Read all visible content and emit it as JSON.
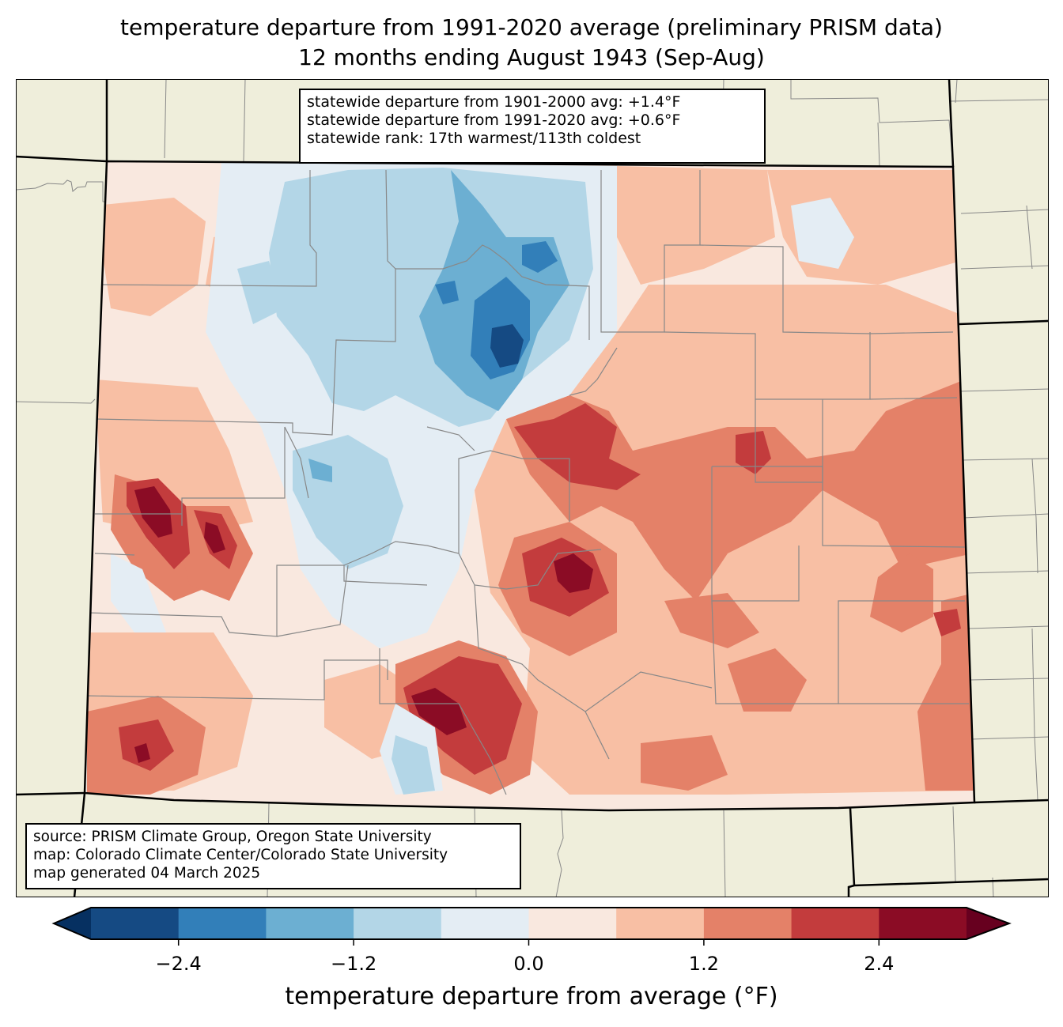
{
  "header": {
    "title_line1": "temperature departure from 1991-2020 average (preliminary PRISM data)",
    "title_line2": "12 months ending August 1943 (Sep-Aug)"
  },
  "stats": {
    "line1": "statewide departure from 1901-2000 avg: +1.4°F",
    "line2": "statewide departure from 1991-2020 avg: +0.6°F",
    "line3": "statewide rank: 17th warmest/113th coldest"
  },
  "credits": {
    "line1": "source: PRISM Climate Group, Oregon State University",
    "line2": "map: Colorado Climate Center/Colorado State University",
    "line3": "map generated 04 March 2025"
  },
  "colorbar": {
    "label": "temperature departure from average (°F)",
    "ticks": [
      {
        "value": -2.4,
        "label": "−2.4"
      },
      {
        "value": -1.2,
        "label": "−1.2"
      },
      {
        "value": 0.0,
        "label": "0.0"
      },
      {
        "value": 1.2,
        "label": "1.2"
      },
      {
        "value": 2.4,
        "label": "2.4"
      }
    ],
    "range": [
      -3.0,
      3.0
    ],
    "levels": [
      -3.0,
      -2.4,
      -1.8,
      -1.2,
      -0.6,
      0.0,
      0.6,
      1.2,
      1.8,
      2.4,
      3.0
    ],
    "colors": [
      "#154a83",
      "#327fb9",
      "#6cafd2",
      "#b3d6e7",
      "#e4edf4",
      "#f9e8df",
      "#f8bfa4",
      "#e48168",
      "#c33c3d",
      "#8b0c25"
    ],
    "under_color": "#063061",
    "over_color": "#67001f",
    "extend": "both"
  },
  "map": {
    "land_color": "#efeedb",
    "border_color": "#000000",
    "county_color": "#888888"
  }
}
